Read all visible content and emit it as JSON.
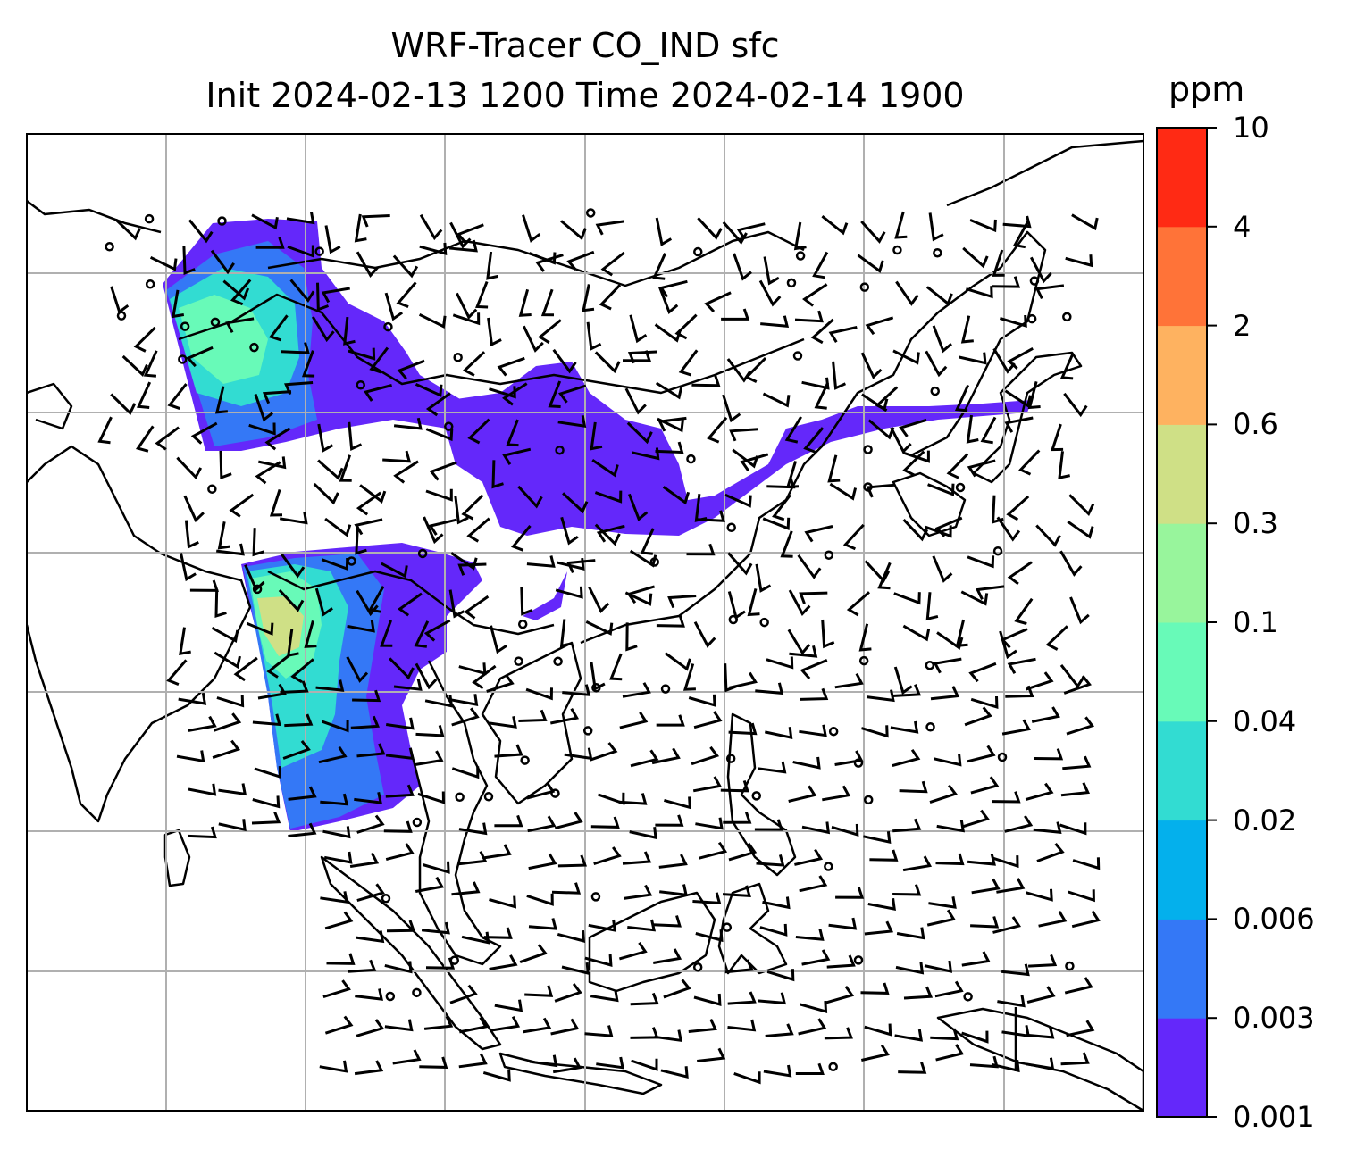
{
  "title": "WRF-Tracer CO_IND sfc",
  "subtitle": "Init 2024-02-13 1200 Time 2024-02-14 1900",
  "colorbar": {
    "unit": "ppm",
    "levels": [
      "0.001",
      "0.003",
      "0.006",
      "0.02",
      "0.04",
      "0.1",
      "0.3",
      "0.6",
      "2",
      "4",
      "10"
    ],
    "colors": [
      "#6428fa",
      "#3478f6",
      "#04b0ec",
      "#32dcd2",
      "#68fab8",
      "#98f59c",
      "#cfe086",
      "#feb260",
      "#ff7338",
      "#ff2a14"
    ]
  },
  "map": {
    "graticule_color": "#b0b0b0",
    "wind_barb_color": "#000000",
    "coastline_color": "#000000"
  }
}
